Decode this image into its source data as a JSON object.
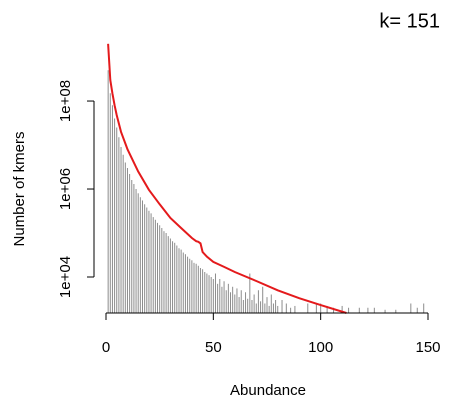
{
  "chart_data": {
    "type": "spike",
    "title": "k= 151",
    "x_label": "Abundance",
    "y_label": "Number of kmers",
    "log_y": true,
    "xlim": [
      0,
      150
    ],
    "xticks": [
      0,
      50,
      100,
      150
    ],
    "ylim": [
      1520,
      2000000000
    ],
    "yticks": [
      {
        "value": 10000,
        "label": "1e+04"
      },
      {
        "value": 1000000,
        "label": "1e+06"
      },
      {
        "value": 100000000,
        "label": "1e+08"
      }
    ],
    "bars": {
      "color": "#8c8c8c",
      "x": [
        1,
        2,
        3,
        4,
        5,
        6,
        7,
        8,
        9,
        10,
        11,
        12,
        13,
        14,
        15,
        16,
        17,
        18,
        19,
        20,
        21,
        22,
        23,
        24,
        25,
        26,
        27,
        28,
        29,
        30,
        31,
        32,
        33,
        34,
        35,
        36,
        37,
        38,
        39,
        40,
        41,
        42,
        43,
        44,
        45,
        46,
        47,
        48,
        49,
        50,
        51,
        52,
        53,
        54,
        55,
        56,
        57,
        58,
        59,
        60,
        61,
        62,
        63,
        64,
        65,
        66,
        67,
        68,
        69,
        70,
        71,
        72,
        73,
        74,
        75,
        76,
        77,
        78,
        79,
        80,
        82,
        84,
        86,
        88,
        94,
        98,
        100,
        103,
        106,
        110,
        113,
        118,
        122,
        125,
        130,
        135,
        142,
        145,
        148
      ],
      "values": [
        500000000,
        150000000,
        80000000,
        40000000,
        25000000,
        15000000,
        9000000,
        6000000,
        4000000,
        3000000,
        2200000,
        1600000,
        1300000,
        1000000,
        800000,
        650000,
        550000,
        450000,
        380000,
        320000,
        280000,
        230000,
        200000,
        170000,
        150000,
        130000,
        110000,
        100000,
        85000,
        75000,
        65000,
        60000,
        52000,
        45000,
        42000,
        36000,
        33000,
        29000,
        26000,
        24000,
        21000,
        20000,
        18000,
        16000,
        15000,
        13000,
        12000,
        11000,
        10000,
        9000,
        12000,
        7000,
        9000,
        6000,
        8000,
        5000,
        7000,
        4500,
        6000,
        4000,
        5500,
        3500,
        5000,
        3000,
        4500,
        3200,
        12000,
        3000,
        4000,
        2500,
        5000,
        2800,
        6000,
        2500,
        3500,
        2200,
        4000,
        2500,
        3000,
        2200,
        3000,
        2500,
        2000,
        2200,
        2500,
        2500,
        2500,
        2200,
        2000,
        2200,
        2000,
        2000,
        2000,
        2000,
        1800,
        1800,
        2500,
        2000,
        2500
      ]
    },
    "fit": {
      "color": "#e41a1c",
      "x": [
        1,
        2,
        3,
        4,
        5,
        7,
        10,
        15,
        20,
        25,
        30,
        35,
        40,
        42,
        43,
        44,
        45,
        47,
        50,
        55,
        60,
        70,
        80,
        90,
        100,
        112
      ],
      "values": [
        2000000000,
        300000000,
        150000000,
        80000000,
        48000000,
        20000000,
        8000000,
        2500000,
        960000,
        450000,
        220000,
        130000,
        77000,
        65000,
        63000,
        58000,
        37000,
        29000,
        22000,
        17000,
        13000,
        8100,
        5000,
        3300,
        2300,
        1520
      ]
    }
  }
}
